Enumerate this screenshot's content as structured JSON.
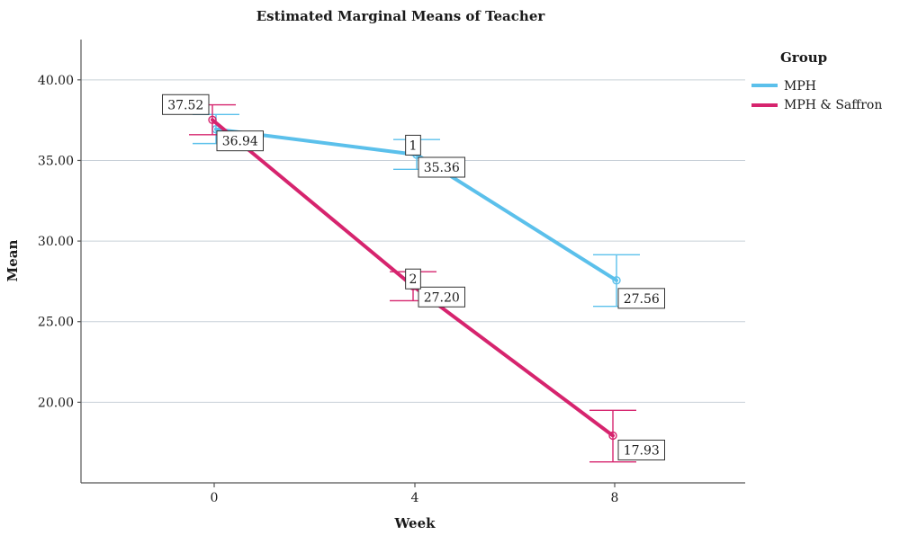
{
  "chart_data": {
    "type": "line",
    "title": "Estimated Marginal Means of Teacher",
    "xlabel": "Week",
    "ylabel": "Mean",
    "categories": [
      "0",
      "4",
      "8"
    ],
    "ylim": [
      15.0,
      42.5
    ],
    "yticks": [
      "20.00",
      "25.00",
      "30.00",
      "35.00",
      "40.00"
    ],
    "grid": true,
    "legend": {
      "title": "Group",
      "position": "right"
    },
    "series": [
      {
        "name": "MPH",
        "color": "#5bc0eb",
        "values": [
          36.94,
          35.36,
          27.56
        ],
        "labels": [
          "36.94",
          "35.36",
          "27.56"
        ],
        "ci_low": [
          36.05,
          34.45,
          25.95
        ],
        "ci_high": [
          37.85,
          36.3,
          29.15
        ]
      },
      {
        "name": "MPH & Saffron",
        "color": "#d6246e",
        "values": [
          37.52,
          27.2,
          17.93
        ],
        "labels": [
          "37.52",
          "27.20",
          "17.93"
        ],
        "ci_low": [
          36.6,
          26.3,
          16.3
        ],
        "ci_high": [
          38.45,
          28.1,
          19.5
        ]
      }
    ],
    "annotations": [
      "1",
      "2"
    ]
  }
}
